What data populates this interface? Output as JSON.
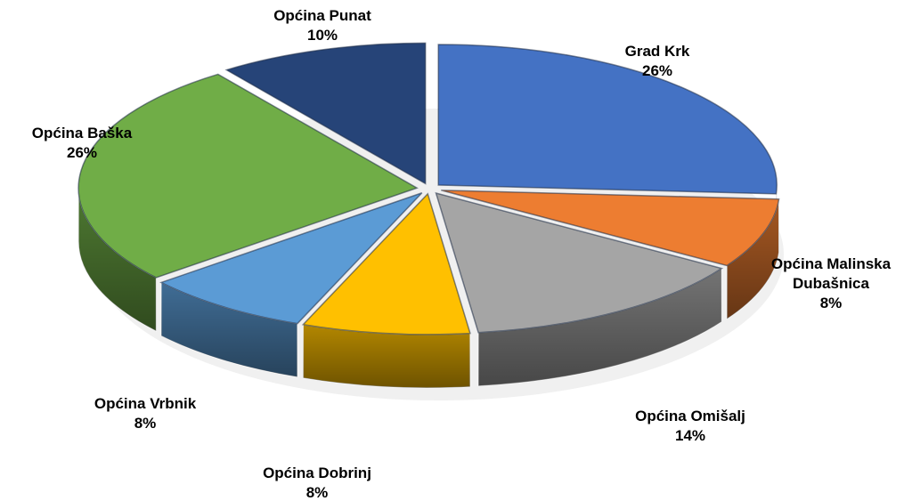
{
  "chart_data": {
    "type": "pie",
    "title": "",
    "legend": "none",
    "data_labels": "outside",
    "unit": "%",
    "slices": [
      {
        "name": "Grad Krk",
        "label_lines": [
          "Grad Krk"
        ],
        "value": 26,
        "value_label": "26%",
        "color": "#4472C4"
      },
      {
        "name": "Općina Malinska Dubašnica",
        "label_lines": [
          "Općina Malinska",
          "Dubašnica"
        ],
        "value": 8,
        "value_label": "8%",
        "color": "#ED7D31"
      },
      {
        "name": "Općina Omišalj",
        "label_lines": [
          "Općina Omišalj"
        ],
        "value": 14,
        "value_label": "14%",
        "color": "#A5A5A5"
      },
      {
        "name": "Općina Dobrinj",
        "label_lines": [
          "Općina Dobrinj"
        ],
        "value": 8,
        "value_label": "8%",
        "color": "#FFC000"
      },
      {
        "name": "Općina Vrbnik",
        "label_lines": [
          "Općina Vrbnik"
        ],
        "value": 8,
        "value_label": "8%",
        "color": "#5B9BD5"
      },
      {
        "name": "Općina Baška",
        "label_lines": [
          "Općina Baška"
        ],
        "value": 26,
        "value_label": "26%",
        "color": "#70AD47"
      },
      {
        "name": "Općina Punat",
        "label_lines": [
          "Općina Punat"
        ],
        "value": 10,
        "value_label": "10%",
        "color": "#264478"
      }
    ]
  }
}
